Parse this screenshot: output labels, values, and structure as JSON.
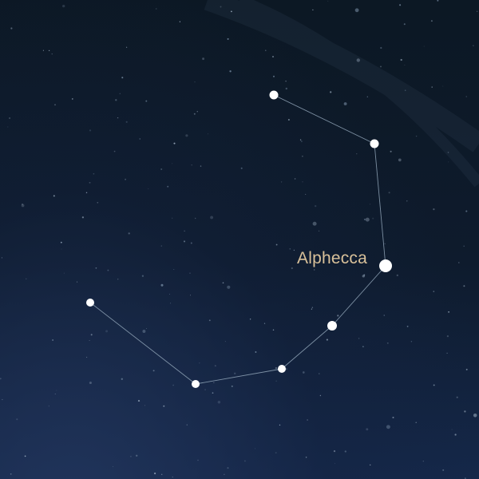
{
  "scene": {
    "colors": {
      "line": "#8fa3b6",
      "star": "#ffffff",
      "label": "#d9c19a"
    },
    "labels": {
      "alphecca": "Alphecca"
    }
  }
}
